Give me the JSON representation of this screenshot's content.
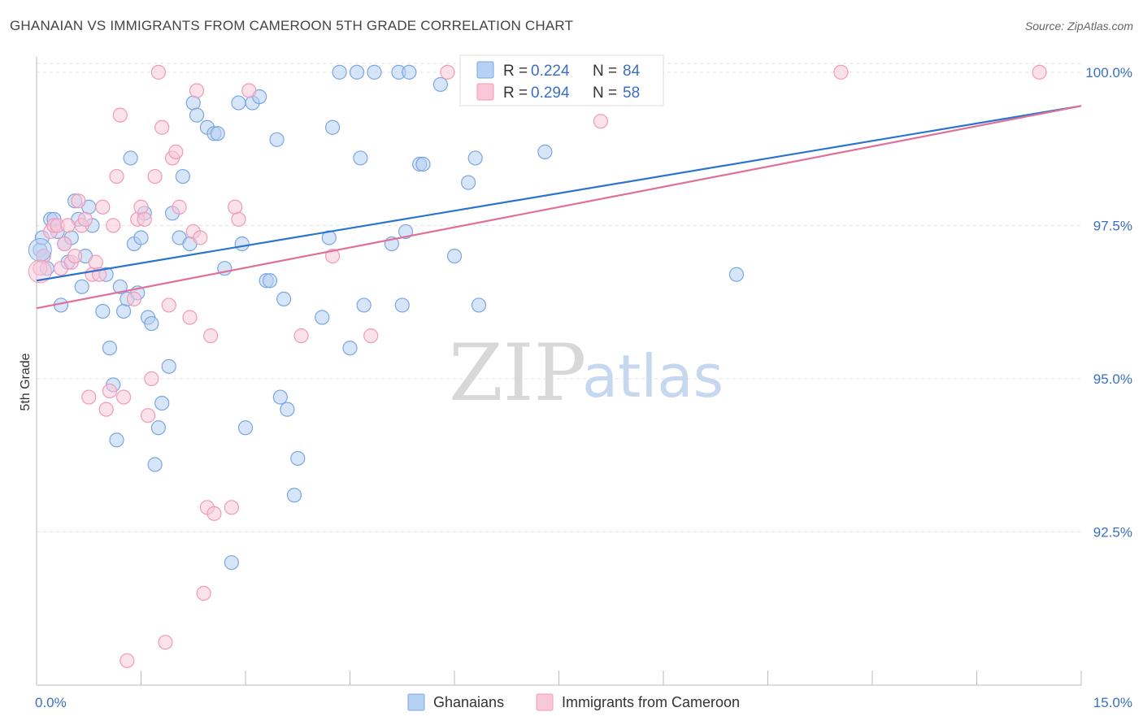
{
  "title": "GHANAIAN VS IMMIGRANTS FROM CAMEROON 5TH GRADE CORRELATION CHART",
  "source": "Source: ZipAtlas.com",
  "colors": {
    "blue": "#7aa7e0",
    "blue_fill": "#b7d0f3",
    "blue_line": "#2a74d0",
    "pink": "#f09ab8",
    "pink_fill": "#f8c8d8",
    "pink_line": "#e07098",
    "tick": "#3a6fc4"
  },
  "legend": {
    "r_label": "R =",
    "n_label": "N =",
    "series": [
      {
        "r": "0.224",
        "n": "84"
      },
      {
        "r": "0.294",
        "n": "58"
      }
    ]
  },
  "bottom_legend": [
    "Ghanaians",
    "Immigrants from Cameroon"
  ],
  "watermark": {
    "zip": "ZIP",
    "atlas": "atlas"
  },
  "chart_data": {
    "type": "scatter",
    "title": "GHANAIAN VS IMMIGRANTS FROM CAMEROON 5TH GRADE CORRELATION CHART",
    "xlabel": "",
    "ylabel": "5th Grade",
    "xlim": [
      0.0,
      15.0
    ],
    "ylim": [
      90.0,
      100.25
    ],
    "x_tick_labels": [
      "0.0%",
      "15.0%"
    ],
    "y_ticks": [
      92.5,
      95.0,
      97.5,
      100.0
    ],
    "y_tick_labels": [
      "92.5%",
      "95.0%",
      "97.5%",
      "100.0%"
    ],
    "grid": true,
    "series": [
      {
        "name": "Ghanaians",
        "color": "#7aa7e0",
        "trend": {
          "x": [
            0.0,
            15.0
          ],
          "y": [
            96.6,
            99.45
          ]
        },
        "points": [
          [
            0.05,
            97.1
          ],
          [
            0.1,
            97.0
          ],
          [
            0.15,
            96.8
          ],
          [
            0.2,
            97.6
          ],
          [
            0.25,
            97.6
          ],
          [
            0.3,
            97.4
          ],
          [
            0.35,
            96.2
          ],
          [
            0.4,
            97.2
          ],
          [
            0.45,
            96.9
          ],
          [
            0.5,
            97.3
          ],
          [
            0.55,
            97.9
          ],
          [
            0.6,
            97.6
          ],
          [
            0.65,
            96.5
          ],
          [
            0.7,
            97.0
          ],
          [
            0.75,
            97.8
          ],
          [
            0.8,
            97.5
          ],
          [
            0.95,
            96.1
          ],
          [
            1.0,
            96.7
          ],
          [
            1.05,
            95.5
          ],
          [
            1.1,
            94.9
          ],
          [
            1.15,
            94.0
          ],
          [
            1.2,
            96.5
          ],
          [
            1.25,
            96.1
          ],
          [
            1.3,
            96.3
          ],
          [
            1.35,
            98.6
          ],
          [
            1.4,
            97.2
          ],
          [
            1.45,
            96.4
          ],
          [
            1.5,
            97.3
          ],
          [
            1.55,
            97.7
          ],
          [
            1.6,
            96.0
          ],
          [
            1.65,
            95.9
          ],
          [
            1.7,
            93.6
          ],
          [
            1.75,
            94.2
          ],
          [
            1.8,
            94.6
          ],
          [
            1.9,
            95.2
          ],
          [
            1.95,
            97.7
          ],
          [
            2.05,
            97.3
          ],
          [
            2.1,
            98.3
          ],
          [
            2.2,
            97.2
          ],
          [
            2.25,
            99.5
          ],
          [
            2.3,
            99.3
          ],
          [
            2.45,
            99.1
          ],
          [
            2.55,
            99.0
          ],
          [
            2.6,
            99.0
          ],
          [
            2.7,
            96.8
          ],
          [
            2.8,
            92.0
          ],
          [
            2.9,
            99.5
          ],
          [
            2.95,
            97.2
          ],
          [
            3.0,
            94.2
          ],
          [
            3.1,
            99.5
          ],
          [
            3.2,
            99.6
          ],
          [
            3.3,
            96.6
          ],
          [
            3.35,
            96.6
          ],
          [
            3.45,
            98.9
          ],
          [
            3.5,
            94.7
          ],
          [
            3.55,
            96.3
          ],
          [
            3.6,
            94.5
          ],
          [
            3.7,
            93.1
          ],
          [
            3.75,
            93.7
          ],
          [
            4.1,
            96.0
          ],
          [
            4.2,
            97.3
          ],
          [
            4.25,
            99.1
          ],
          [
            4.35,
            100.0
          ],
          [
            4.5,
            95.5
          ],
          [
            4.6,
            100.0
          ],
          [
            4.65,
            98.6
          ],
          [
            4.7,
            96.2
          ],
          [
            4.85,
            100.0
          ],
          [
            5.1,
            97.2
          ],
          [
            5.2,
            100.0
          ],
          [
            5.25,
            96.2
          ],
          [
            5.3,
            97.4
          ],
          [
            5.35,
            100.0
          ],
          [
            5.5,
            98.5
          ],
          [
            5.55,
            98.5
          ],
          [
            5.8,
            99.8
          ],
          [
            6.0,
            97.0
          ],
          [
            6.2,
            98.2
          ],
          [
            6.3,
            98.6
          ],
          [
            6.35,
            96.2
          ],
          [
            7.0,
            100.0
          ],
          [
            7.3,
            98.7
          ],
          [
            10.05,
            96.7
          ],
          [
            0.08,
            97.3
          ]
        ]
      },
      {
        "name": "Immigrants from Cameroon",
        "color": "#f09ab8",
        "trend": {
          "x": [
            0.0,
            15.0
          ],
          "y": [
            96.15,
            99.45
          ]
        },
        "points": [
          [
            0.05,
            96.8
          ],
          [
            0.1,
            97.0
          ],
          [
            0.2,
            97.4
          ],
          [
            0.25,
            97.5
          ],
          [
            0.3,
            97.5
          ],
          [
            0.35,
            96.8
          ],
          [
            0.4,
            97.2
          ],
          [
            0.45,
            97.5
          ],
          [
            0.5,
            96.9
          ],
          [
            0.55,
            97.0
          ],
          [
            0.6,
            97.9
          ],
          [
            0.65,
            97.5
          ],
          [
            0.7,
            97.6
          ],
          [
            0.75,
            94.7
          ],
          [
            0.8,
            96.7
          ],
          [
            0.85,
            96.9
          ],
          [
            0.9,
            96.7
          ],
          [
            0.95,
            97.8
          ],
          [
            1.0,
            94.5
          ],
          [
            1.05,
            94.8
          ],
          [
            1.1,
            97.5
          ],
          [
            1.15,
            98.3
          ],
          [
            1.2,
            99.3
          ],
          [
            1.25,
            94.7
          ],
          [
            1.3,
            90.4
          ],
          [
            1.4,
            96.3
          ],
          [
            1.45,
            97.6
          ],
          [
            1.5,
            97.8
          ],
          [
            1.55,
            97.6
          ],
          [
            1.6,
            94.4
          ],
          [
            1.65,
            95.0
          ],
          [
            1.7,
            98.3
          ],
          [
            1.75,
            100.0
          ],
          [
            1.8,
            99.1
          ],
          [
            1.85,
            90.7
          ],
          [
            1.9,
            96.2
          ],
          [
            1.95,
            98.6
          ],
          [
            2.0,
            98.7
          ],
          [
            2.05,
            97.8
          ],
          [
            2.2,
            96.0
          ],
          [
            2.25,
            97.4
          ],
          [
            2.3,
            99.7
          ],
          [
            2.35,
            97.3
          ],
          [
            2.4,
            91.5
          ],
          [
            2.45,
            92.9
          ],
          [
            2.5,
            95.7
          ],
          [
            2.55,
            92.8
          ],
          [
            2.8,
            92.9
          ],
          [
            2.85,
            97.8
          ],
          [
            2.9,
            97.6
          ],
          [
            3.05,
            99.7
          ],
          [
            3.8,
            95.7
          ],
          [
            4.25,
            97.0
          ],
          [
            4.8,
            95.7
          ],
          [
            5.9,
            100.0
          ],
          [
            8.1,
            99.2
          ],
          [
            11.55,
            100.0
          ],
          [
            14.4,
            100.0
          ]
        ]
      }
    ]
  }
}
